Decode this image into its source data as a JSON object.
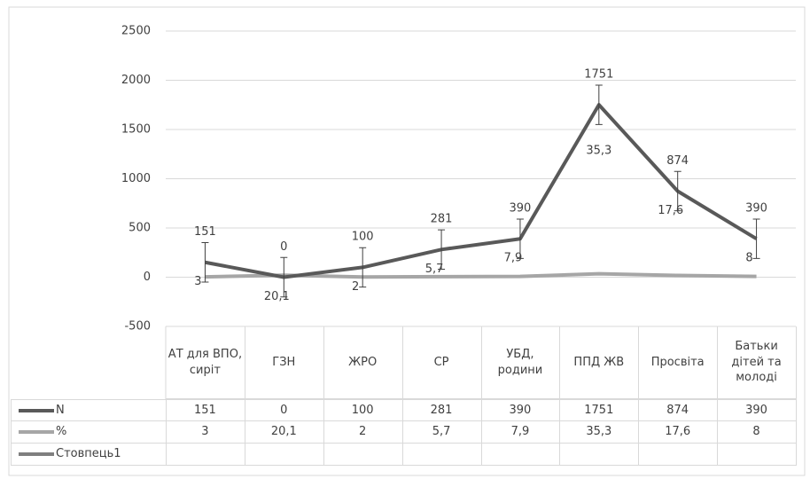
{
  "chart_data": {
    "type": "line",
    "categories": [
      "АТ для ВПО, сиріт",
      "ГЗН",
      "ЖРО",
      "СР",
      "УБД, родини",
      "ППД ЖВ",
      "Просвіта",
      "Батьки дітей та молоді"
    ],
    "series": [
      {
        "name": "N",
        "color": "#595959",
        "values": [
          151,
          0,
          100,
          281,
          390,
          1751,
          874,
          390
        ],
        "errors": [
          200,
          200,
          200,
          200,
          200,
          200,
          200,
          200
        ]
      },
      {
        "name": "%",
        "color": "#a6a6a6",
        "values": [
          3,
          20.1,
          2,
          5.7,
          7.9,
          35.3,
          17.6,
          8
        ],
        "value_labels": [
          "3",
          "20,1",
          "2",
          "5,7",
          "7,9",
          "35,3",
          "17,6",
          "8"
        ]
      },
      {
        "name": "Стовпець1",
        "color": "#7f7f7f",
        "values": [
          null,
          null,
          null,
          null,
          null,
          null,
          null,
          null
        ]
      }
    ],
    "ylim": [
      -500,
      2500
    ],
    "yticks": [
      -500,
      0,
      500,
      1000,
      1500,
      2000,
      2500
    ],
    "grid": true,
    "data_table": true
  }
}
